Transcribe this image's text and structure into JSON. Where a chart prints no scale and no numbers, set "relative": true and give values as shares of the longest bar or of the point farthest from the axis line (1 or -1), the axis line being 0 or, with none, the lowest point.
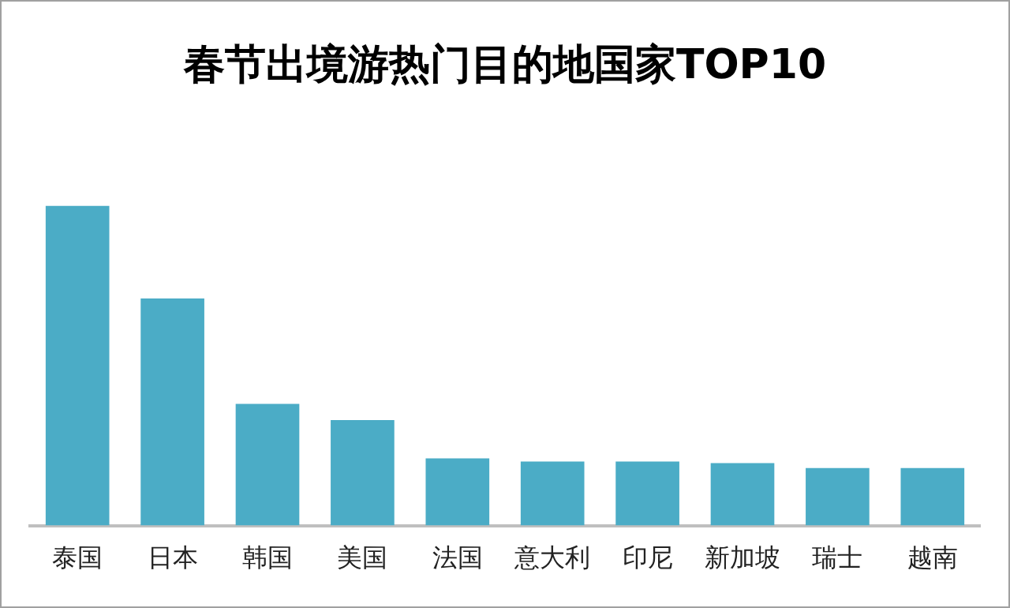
{
  "chart_data": {
    "type": "bar",
    "title": "春节出境游热门目的地国家TOP10",
    "relative": true,
    "categories": [
      "泰国",
      "日本",
      "韩国",
      "美国",
      "法国",
      "意大利",
      "印尼",
      "新加坡",
      "瑞士",
      "越南"
    ],
    "values": [
      1,
      0.71,
      0.38,
      0.33,
      0.21,
      0.2,
      0.2,
      0.195,
      0.18,
      0.18
    ],
    "color": "#4bacc6",
    "grid": false,
    "legend": false
  }
}
